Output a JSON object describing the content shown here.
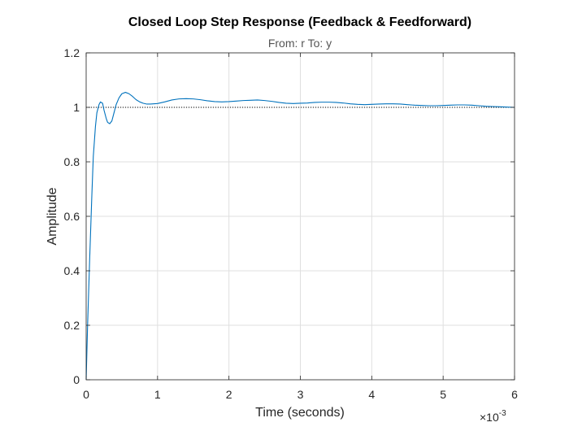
{
  "chart_data": {
    "type": "line",
    "title": "Closed Loop Step Response (Feedback & Feedforward)",
    "subtitle": "From: r  To: y",
    "xlabel": "Time (seconds)",
    "ylabel": "Amplitude",
    "x_exponent_label": "×10",
    "x_exponent_power": "-3",
    "xlim": [
      0,
      6
    ],
    "ylim": [
      0,
      1.2
    ],
    "x_ticks": [
      0,
      1,
      2,
      3,
      4,
      5,
      6
    ],
    "x_tick_labels": [
      "0",
      "1",
      "2",
      "3",
      "4",
      "5",
      "6"
    ],
    "y_ticks": [
      0,
      0.2,
      0.4,
      0.6,
      0.8,
      1,
      1.2
    ],
    "y_tick_labels": [
      "0",
      "0.2",
      "0.4",
      "0.6",
      "0.8",
      "1",
      "1.2"
    ],
    "grid": true,
    "reference_line": {
      "y": 1,
      "style": "dotted",
      "color": "#000000"
    },
    "series": [
      {
        "color": "#0072BD",
        "x": [
          0,
          0.02,
          0.05,
          0.08,
          0.1,
          0.13,
          0.15,
          0.18,
          0.2,
          0.23,
          0.25,
          0.28,
          0.3,
          0.33,
          0.36,
          0.39,
          0.42,
          0.46,
          0.5,
          0.55,
          0.6,
          0.65,
          0.7,
          0.75,
          0.8,
          0.85,
          0.9,
          1.0,
          1.1,
          1.2,
          1.3,
          1.4,
          1.5,
          1.6,
          1.7,
          1.8,
          1.9,
          2.0,
          2.1,
          2.2,
          2.3,
          2.4,
          2.5,
          2.6,
          2.7,
          2.8,
          2.9,
          3.0,
          3.1,
          3.2,
          3.3,
          3.4,
          3.5,
          3.6,
          3.7,
          3.8,
          3.9,
          4.0,
          4.1,
          4.2,
          4.3,
          4.4,
          4.5,
          4.6,
          4.7,
          4.8,
          4.9,
          5.0,
          5.1,
          5.2,
          5.3,
          5.4,
          5.5,
          5.6,
          5.7,
          5.8,
          5.9,
          6.0
        ],
        "y": [
          0,
          0.2,
          0.45,
          0.68,
          0.82,
          0.93,
          0.98,
          1.01,
          1.02,
          1.015,
          0.99,
          0.96,
          0.945,
          0.94,
          0.95,
          0.98,
          1.01,
          1.035,
          1.05,
          1.055,
          1.05,
          1.04,
          1.028,
          1.02,
          1.015,
          1.012,
          1.012,
          1.014,
          1.02,
          1.027,
          1.031,
          1.032,
          1.031,
          1.028,
          1.024,
          1.021,
          1.02,
          1.021,
          1.023,
          1.025,
          1.026,
          1.027,
          1.025,
          1.022,
          1.018,
          1.015,
          1.014,
          1.015,
          1.016,
          1.018,
          1.019,
          1.019,
          1.018,
          1.016,
          1.013,
          1.011,
          1.01,
          1.011,
          1.012,
          1.013,
          1.013,
          1.012,
          1.01,
          1.008,
          1.007,
          1.006,
          1.006,
          1.007,
          1.008,
          1.009,
          1.009,
          1.008,
          1.006,
          1.004,
          1.003,
          1.002,
          1.001,
          1.0
        ]
      }
    ]
  }
}
